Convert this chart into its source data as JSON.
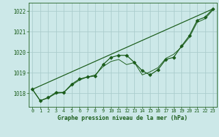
{
  "title": "Graphe pression niveau de la mer (hPa)",
  "bg_color": "#cce8e8",
  "grid_color": "#aacccc",
  "line_color": "#1a5c1a",
  "xlim": [
    -0.5,
    23.5
  ],
  "ylim": [
    1017.35,
    1022.4
  ],
  "yticks": [
    1018,
    1019,
    1020,
    1021,
    1022
  ],
  "xticks": [
    0,
    1,
    2,
    3,
    4,
    5,
    6,
    7,
    8,
    9,
    10,
    11,
    12,
    13,
    14,
    15,
    16,
    17,
    18,
    19,
    20,
    21,
    22,
    23
  ],
  "series_main": {
    "x": [
      0,
      1,
      2,
      3,
      4,
      5,
      6,
      7,
      8,
      9,
      10,
      11,
      12,
      13,
      14,
      15,
      16,
      17,
      18,
      19,
      20,
      21,
      22,
      23
    ],
    "y": [
      1018.2,
      1017.65,
      1017.8,
      1018.05,
      1018.05,
      1018.45,
      1018.7,
      1018.8,
      1018.85,
      1019.4,
      1019.75,
      1019.85,
      1019.85,
      1019.5,
      1019.1,
      1018.9,
      1019.15,
      1019.65,
      1019.75,
      1020.3,
      1020.8,
      1021.55,
      1021.7,
      1022.1
    ],
    "marker": "D",
    "markersize": 2.5,
    "linewidth": 0.9
  },
  "series_smooth": {
    "x": [
      0,
      1,
      2,
      3,
      4,
      5,
      6,
      7,
      8,
      9,
      10,
      11,
      12,
      13,
      14,
      15,
      16,
      17,
      18,
      19,
      20,
      21,
      22,
      23
    ],
    "y": [
      1018.2,
      1017.65,
      1017.78,
      1018.0,
      1018.05,
      1018.4,
      1018.65,
      1018.8,
      1018.9,
      1019.3,
      1019.55,
      1019.65,
      1019.4,
      1019.5,
      1018.9,
      1019.05,
      1019.25,
      1019.7,
      1019.9,
      1020.25,
      1020.72,
      1021.45,
      1021.62,
      1022.05
    ],
    "linewidth": 0.7
  },
  "series_linear": {
    "x": [
      0,
      23
    ],
    "y": [
      1018.2,
      1022.1
    ],
    "linewidth": 0.9
  }
}
